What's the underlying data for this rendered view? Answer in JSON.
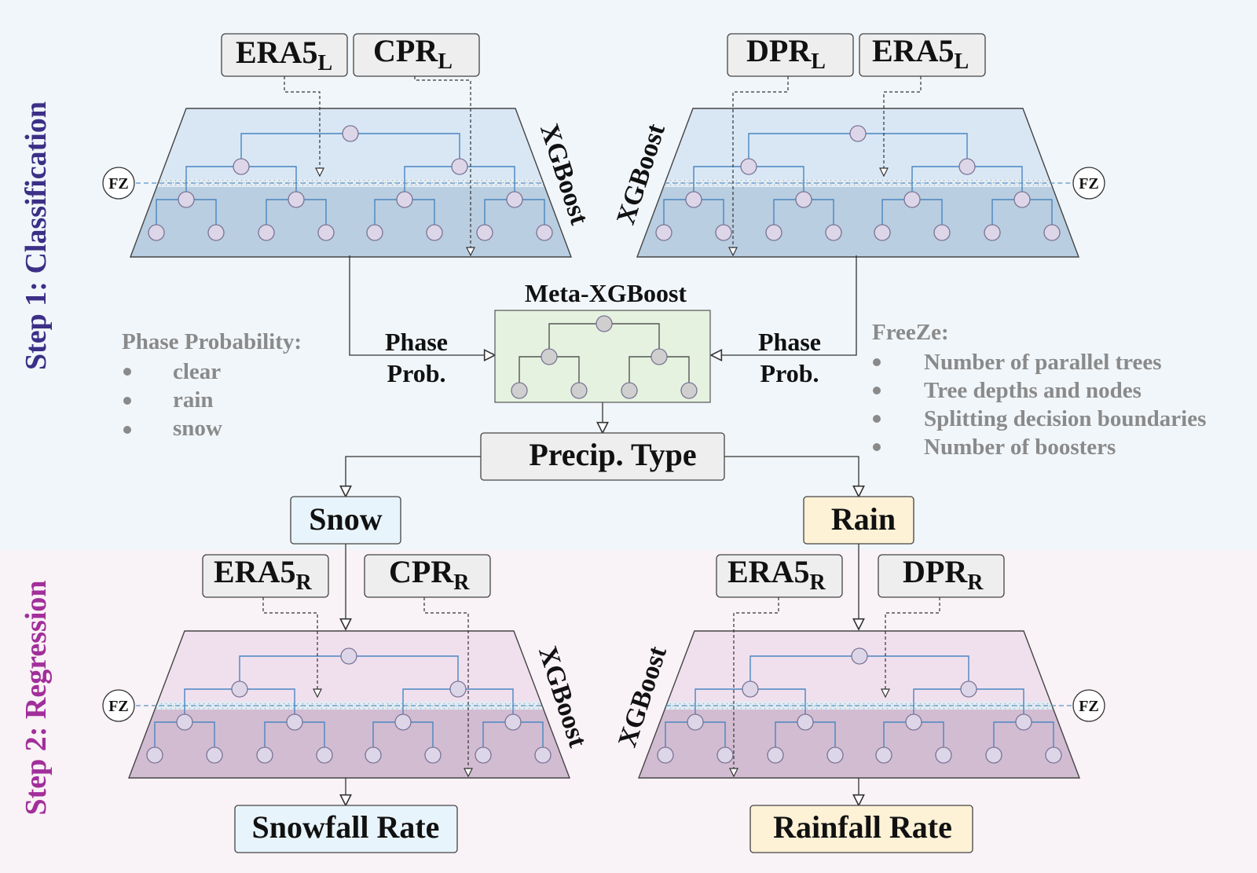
{
  "step1": {
    "label": "Step 1: Classification",
    "color": "#3b2f86"
  },
  "step2": {
    "label": "Step 2: Regression",
    "color": "#a12f9a"
  },
  "fz_label": "FZ",
  "xgboost_label": "XGBoost",
  "inputs": {
    "era5": "ERA5",
    "cpr": "CPR",
    "dpr": "DPR",
    "sub_l": "L",
    "sub_r": "R"
  },
  "meta": {
    "title": "Meta-XGBoost"
  },
  "phase_prob": {
    "line1": "Phase",
    "line2": "Prob."
  },
  "phase_probability": {
    "title": "Phase Probability:",
    "items": [
      "clear",
      "rain",
      "snow"
    ]
  },
  "freeze": {
    "title": "FreeZe:",
    "items": [
      "Number of parallel trees",
      "Tree depths and nodes",
      "Splitting decision boundaries",
      "Number of boosters"
    ]
  },
  "precip_type": "Precip. Type",
  "snow": "Snow",
  "rain": "Rain",
  "snowfall_rate": "Snowfall Rate",
  "rainfall_rate": "Rainfall Rate",
  "colors": {
    "step1_bg": "#f1f6fa",
    "step2_bg": "#f9f2f6",
    "blue_top": "#d9e7f5",
    "blue_bottom": "#b9cee0",
    "pink_top": "#f0e0ee",
    "pink_bottom": "#d2bcd2",
    "meta_fill": "#e5f2df",
    "snow_fill": "#e8f4fb",
    "rain_fill": "#fdf1d6",
    "input_fill": "#eeeeee",
    "tree_line": "#4a86c0",
    "node_fill": "#ddd6e8"
  }
}
